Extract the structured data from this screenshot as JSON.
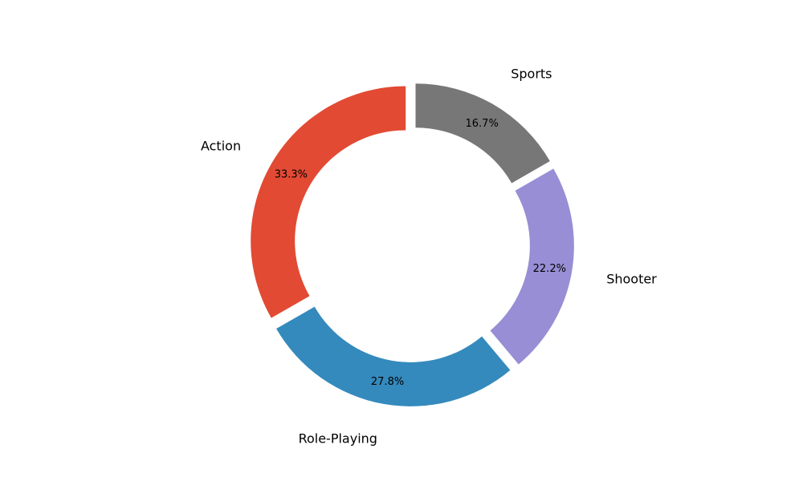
{
  "chart_data": {
    "type": "pie",
    "variant": "donut",
    "title": "",
    "start_angle_deg": 90,
    "direction": "counterclockwise",
    "exploded": true,
    "slices": [
      {
        "label": "Action",
        "value": 33.3,
        "pct_label": "33.3%",
        "color": "#E24A33"
      },
      {
        "label": "Role-Playing",
        "value": 27.8,
        "pct_label": "27.8%",
        "color": "#348ABD"
      },
      {
        "label": "Shooter",
        "value": 22.2,
        "pct_label": "22.2%",
        "color": "#988ED5"
      },
      {
        "label": "Sports",
        "value": 16.7,
        "pct_label": "16.7%",
        "color": "#777777"
      }
    ]
  }
}
